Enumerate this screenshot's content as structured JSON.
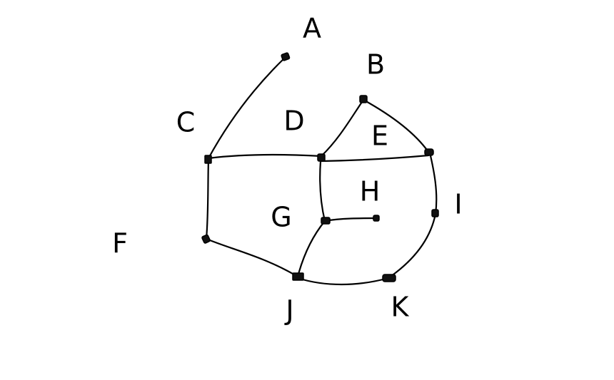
{
  "labels": {
    "a": "A",
    "b": "B",
    "c": "C",
    "d": "D",
    "e": "E",
    "f": "F",
    "g": "G",
    "h": "H",
    "i": "I",
    "j": "J",
    "k": "K"
  },
  "colors": {
    "background": "#ffffff",
    "ink": "#000000"
  }
}
